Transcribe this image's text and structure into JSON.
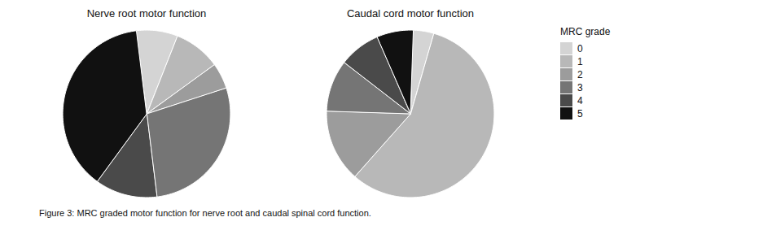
{
  "legend_title": "MRC grade",
  "caption": "Figure 3: MRC graded motor function for nerve root and caudal spinal cord function.",
  "chart_data": [
    {
      "type": "pie",
      "title": "Nerve root motor function",
      "categories": [
        "0",
        "1",
        "2",
        "3",
        "4",
        "5"
      ],
      "values": [
        8,
        9,
        5,
        28,
        12,
        38
      ],
      "colors": [
        "#d4d4d4",
        "#b8b8b8",
        "#9c9c9c",
        "#757575",
        "#4a4a4a",
        "#111111"
      ]
    },
    {
      "type": "pie",
      "title": "Caudal cord motor function",
      "categories": [
        "0",
        "1",
        "2",
        "3",
        "4",
        "5"
      ],
      "values": [
        4,
        57,
        14,
        10,
        8,
        7
      ],
      "colors": [
        "#d4d4d4",
        "#b8b8b8",
        "#9c9c9c",
        "#757575",
        "#4a4a4a",
        "#111111"
      ]
    }
  ]
}
